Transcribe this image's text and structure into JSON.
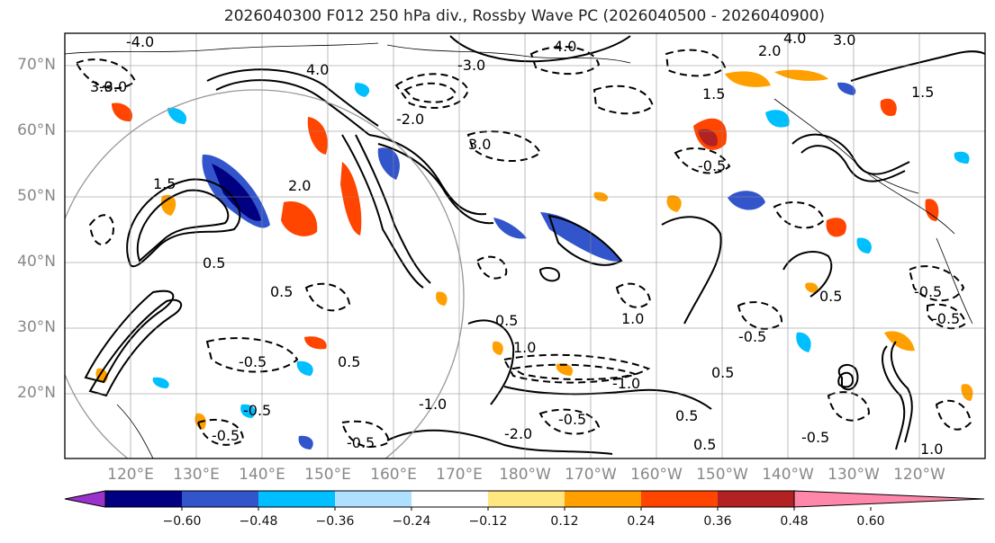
{
  "title": "2026040300 F012 250 hPa div., Rossby Wave PC (2026040500 - 2026040900)",
  "map": {
    "lat_labels": [
      "70°N",
      "60°N",
      "50°N",
      "40°N",
      "30°N",
      "20°N"
    ],
    "lon_labels": [
      "120°E",
      "130°E",
      "140°E",
      "150°E",
      "160°E",
      "170°E",
      "180°W",
      "170°W",
      "160°W",
      "150°W",
      "140°W",
      "130°W",
      "120°W"
    ],
    "contour_labels": [
      "4.0",
      "3.0",
      "2.0",
      "1.5",
      "1.0",
      "0.5",
      "-0.5",
      "-1.0",
      "-2.0",
      "-3.0",
      "-4.0"
    ]
  },
  "colorbar": {
    "tick_labels": [
      "−0.60",
      "−0.48",
      "−0.36",
      "−0.24",
      "−0.12",
      "0.12",
      "0.24",
      "0.36",
      "0.48",
      "0.60"
    ],
    "colors": [
      "#9933cc",
      "#000080",
      "#3355cc",
      "#00bfff",
      "#b0e0ff",
      "#ffffff",
      "#ffe680",
      "#ffa000",
      "#ff4500",
      "#b22222",
      "#ff88aa"
    ]
  }
}
